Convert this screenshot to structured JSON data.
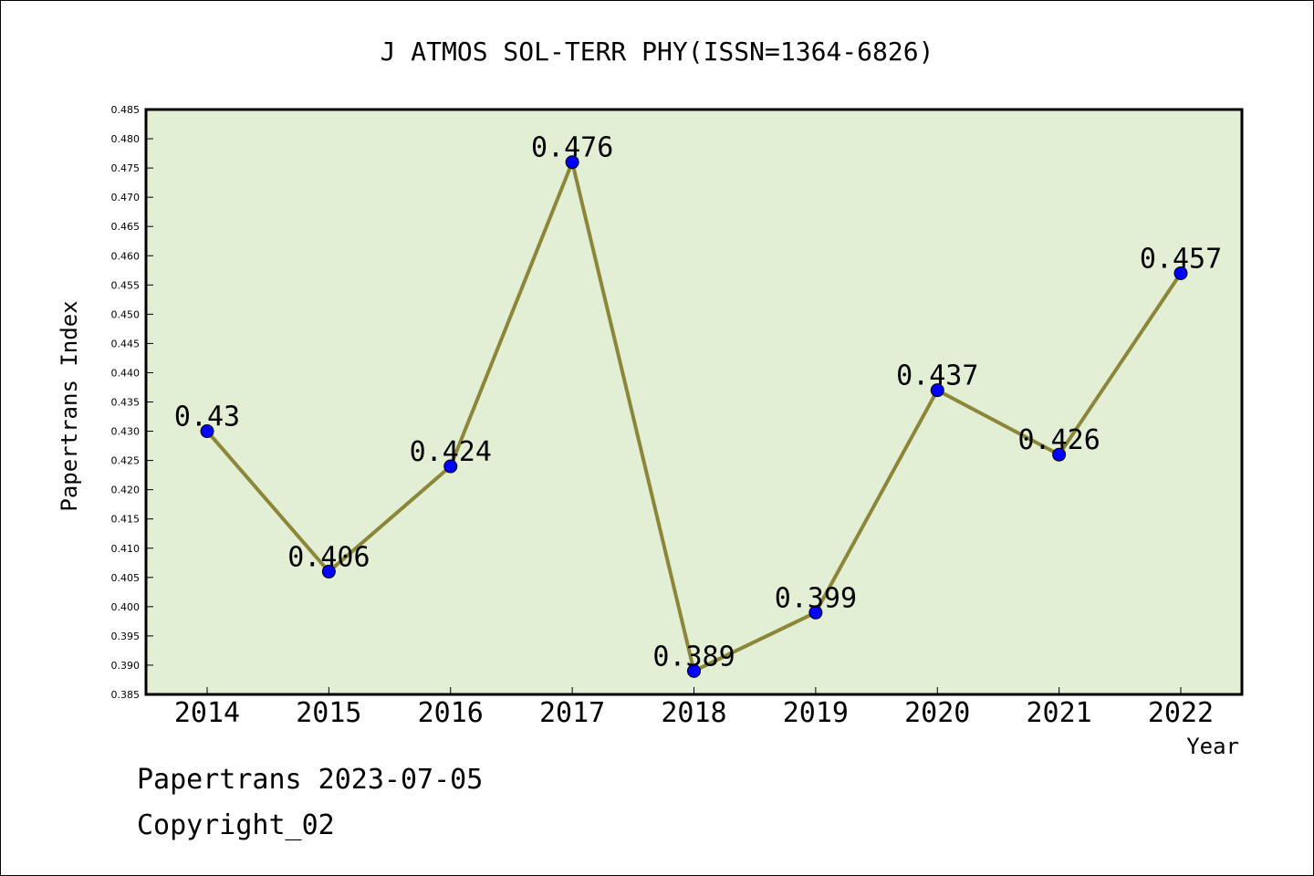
{
  "chart_data": {
    "type": "line",
    "title": "J ATMOS SOL-TERR PHY(ISSN=1364-6826)",
    "xlabel": "Year",
    "ylabel": "Papertrans Index",
    "categories": [
      "2014",
      "2015",
      "2016",
      "2017",
      "2018",
      "2019",
      "2020",
      "2021",
      "2022"
    ],
    "series": [
      {
        "values": [
          0.43,
          0.406,
          0.424,
          0.476,
          0.389,
          0.399,
          0.437,
          0.426,
          0.457
        ],
        "data_labels": [
          "0.43",
          "0.406",
          "0.424",
          "0.476",
          "0.389",
          "0.399",
          "0.437",
          "0.426",
          "0.457"
        ],
        "line_color": "#8b8638",
        "marker_color": "#0000ff"
      }
    ],
    "ylim": [
      0.385,
      0.485
    ],
    "yticks": [
      "0.385",
      "0.390",
      "0.395",
      "0.400",
      "0.405",
      "0.410",
      "0.415",
      "0.420",
      "0.425",
      "0.430",
      "0.435",
      "0.440",
      "0.445",
      "0.450",
      "0.455",
      "0.460",
      "0.465",
      "0.470",
      "0.475",
      "0.480",
      "0.485"
    ],
    "grid": false,
    "plot_background": "#e2efd5"
  },
  "footer": {
    "line1": "Papertrans 2023-07-05",
    "line2": "Copyright_02"
  }
}
